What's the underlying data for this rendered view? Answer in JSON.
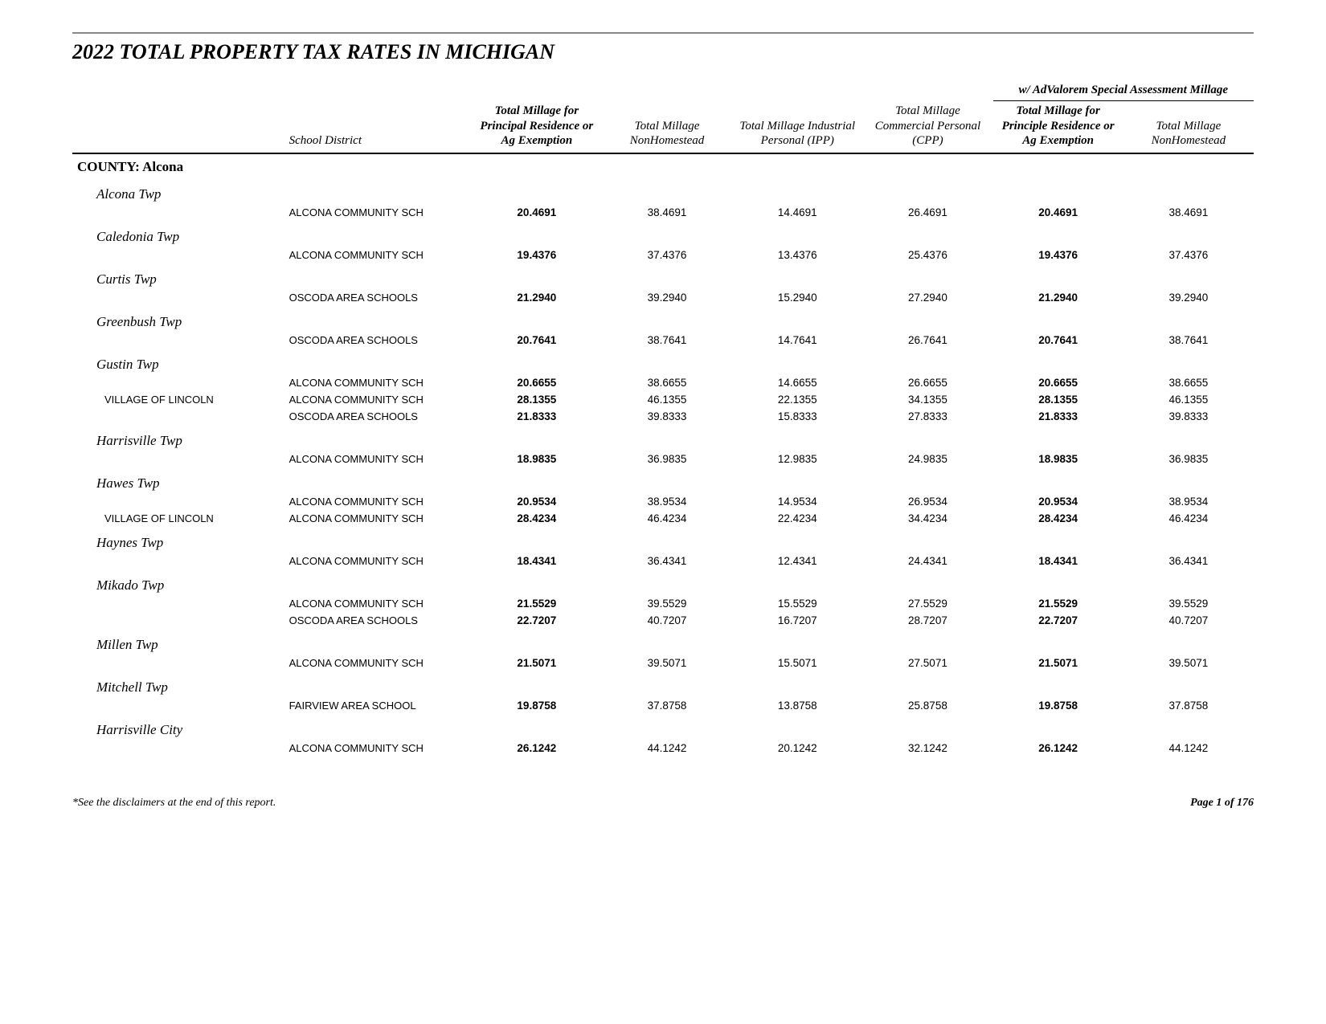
{
  "title": "2022 TOTAL PROPERTY TAX RATES IN MICHIGAN",
  "super_header": "w/ AdValorem Special Assessment Millage",
  "columns": {
    "school_district": "School District",
    "col1": "Total Millage for Principal Residence or Ag Exemption",
    "col2": "Total Millage NonHomestead",
    "col3": "Total Millage Industrial Personal (IPP)",
    "col4": "Total Millage Commercial Personal (CPP)",
    "col5": "Total Millage for Principle Residence or Ag Exemption",
    "col6": "Total Millage NonHomestead"
  },
  "county_label": "COUNTY:  Alcona",
  "groups": [
    {
      "name": "Alcona Twp",
      "rows": [
        {
          "sub": "",
          "school": "ALCONA COMMUNITY SCH",
          "v": [
            "20.4691",
            "38.4691",
            "14.4691",
            "26.4691",
            "20.4691",
            "38.4691"
          ]
        }
      ]
    },
    {
      "name": "Caledonia Twp",
      "rows": [
        {
          "sub": "",
          "school": "ALCONA COMMUNITY SCH",
          "v": [
            "19.4376",
            "37.4376",
            "13.4376",
            "25.4376",
            "19.4376",
            "37.4376"
          ]
        }
      ]
    },
    {
      "name": "Curtis Twp",
      "rows": [
        {
          "sub": "",
          "school": "OSCODA AREA SCHOOLS",
          "v": [
            "21.2940",
            "39.2940",
            "15.2940",
            "27.2940",
            "21.2940",
            "39.2940"
          ]
        }
      ]
    },
    {
      "name": "Greenbush Twp",
      "rows": [
        {
          "sub": "",
          "school": "OSCODA AREA SCHOOLS",
          "v": [
            "20.7641",
            "38.7641",
            "14.7641",
            "26.7641",
            "20.7641",
            "38.7641"
          ]
        }
      ]
    },
    {
      "name": "Gustin Twp",
      "rows": [
        {
          "sub": "",
          "school": "ALCONA COMMUNITY SCH",
          "v": [
            "20.6655",
            "38.6655",
            "14.6655",
            "26.6655",
            "20.6655",
            "38.6655"
          ]
        },
        {
          "sub": "VILLAGE OF LINCOLN",
          "school": "ALCONA COMMUNITY SCH",
          "v": [
            "28.1355",
            "46.1355",
            "22.1355",
            "34.1355",
            "28.1355",
            "46.1355"
          ]
        },
        {
          "sub": "",
          "school": "OSCODA AREA SCHOOLS",
          "v": [
            "21.8333",
            "39.8333",
            "15.8333",
            "27.8333",
            "21.8333",
            "39.8333"
          ]
        }
      ]
    },
    {
      "name": "Harrisville Twp",
      "rows": [
        {
          "sub": "",
          "school": "ALCONA COMMUNITY SCH",
          "v": [
            "18.9835",
            "36.9835",
            "12.9835",
            "24.9835",
            "18.9835",
            "36.9835"
          ]
        }
      ]
    },
    {
      "name": "Hawes Twp",
      "rows": [
        {
          "sub": "",
          "school": "ALCONA COMMUNITY SCH",
          "v": [
            "20.9534",
            "38.9534",
            "14.9534",
            "26.9534",
            "20.9534",
            "38.9534"
          ]
        },
        {
          "sub": "VILLAGE OF LINCOLN",
          "school": "ALCONA COMMUNITY SCH",
          "v": [
            "28.4234",
            "46.4234",
            "22.4234",
            "34.4234",
            "28.4234",
            "46.4234"
          ]
        }
      ]
    },
    {
      "name": "Haynes Twp",
      "rows": [
        {
          "sub": "",
          "school": "ALCONA COMMUNITY SCH",
          "v": [
            "18.4341",
            "36.4341",
            "12.4341",
            "24.4341",
            "18.4341",
            "36.4341"
          ]
        }
      ]
    },
    {
      "name": "Mikado Twp",
      "rows": [
        {
          "sub": "",
          "school": "ALCONA COMMUNITY SCH",
          "v": [
            "21.5529",
            "39.5529",
            "15.5529",
            "27.5529",
            "21.5529",
            "39.5529"
          ]
        },
        {
          "sub": "",
          "school": "OSCODA AREA SCHOOLS",
          "v": [
            "22.7207",
            "40.7207",
            "16.7207",
            "28.7207",
            "22.7207",
            "40.7207"
          ]
        }
      ]
    },
    {
      "name": "Millen Twp",
      "rows": [
        {
          "sub": "",
          "school": "ALCONA COMMUNITY SCH",
          "v": [
            "21.5071",
            "39.5071",
            "15.5071",
            "27.5071",
            "21.5071",
            "39.5071"
          ]
        }
      ]
    },
    {
      "name": "Mitchell Twp",
      "rows": [
        {
          "sub": "",
          "school": "FAIRVIEW AREA SCHOOL",
          "v": [
            "19.8758",
            "37.8758",
            "13.8758",
            "25.8758",
            "19.8758",
            "37.8758"
          ]
        }
      ]
    },
    {
      "name": "Harrisville City",
      "rows": [
        {
          "sub": "",
          "school": "ALCONA COMMUNITY SCH",
          "v": [
            "26.1242",
            "44.1242",
            "20.1242",
            "32.1242",
            "26.1242",
            "44.1242"
          ]
        }
      ]
    }
  ],
  "footer": {
    "disclaimer": "*See the disclaimers at the end of this report.",
    "page": "Page 1 of 176"
  },
  "style": {
    "bold_columns": [
      0,
      4
    ],
    "colors": {
      "text": "#000000",
      "bg": "#ffffff",
      "rule": "#888888"
    },
    "fonts": {
      "serif": "Times New Roman",
      "sans": "Arial"
    }
  }
}
